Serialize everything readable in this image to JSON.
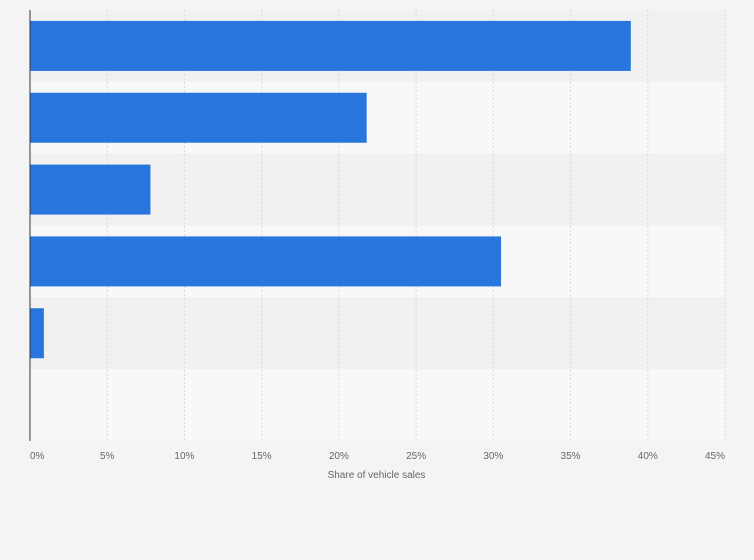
{
  "chart_data": {
    "type": "bar",
    "orientation": "horizontal",
    "title": "",
    "xlabel": "Share of vehicle sales",
    "ylabel": "",
    "categories": [
      "",
      "",
      "",
      "",
      "",
      ""
    ],
    "values": [
      38.9,
      21.8,
      7.8,
      30.5,
      0.9,
      0
    ],
    "xlim": [
      0,
      45
    ],
    "xticks": [
      0,
      5,
      10,
      15,
      20,
      25,
      30,
      35,
      40,
      45
    ],
    "xtick_labels": [
      "0%",
      "5%",
      "10%",
      "15%",
      "20%",
      "25%",
      "30%",
      "35%",
      "40%",
      "45%"
    ],
    "grid": true,
    "legend": "none",
    "colors": {
      "bar": "#2876dd",
      "band_a": "#f1f1f1",
      "band_b": "#f8f8f8",
      "grid": "#d8d8d8",
      "axis": "#333333",
      "background": "#f4f4f4"
    }
  }
}
